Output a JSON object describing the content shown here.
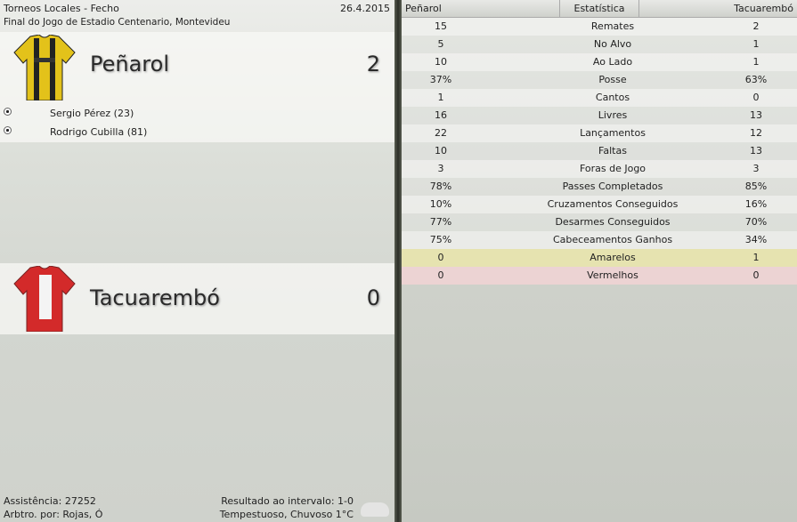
{
  "header": {
    "competition": "Torneos Locales - Fecho",
    "date": "26.4.2015",
    "venue": "Final do Jogo de Estadio Centenario, Montevideu"
  },
  "home": {
    "name": "Peñarol",
    "score": "2",
    "kit_colors": [
      "#e8c400",
      "#1e1e1e"
    ],
    "scorers": [
      "Sergio Pérez (23)",
      "Rodrigo Cubilla (81)"
    ]
  },
  "away": {
    "name": "Tacuarembó",
    "score": "0",
    "kit_colors": [
      "#d32a2a",
      "#ffffff"
    ]
  },
  "footer": {
    "attendance": "Assistência: 27252",
    "referee": "Arbtro. por: Rojas, Ó",
    "halftime": "Resultado ao intervalo: 1-0",
    "weather": "Tempestuoso, Chuvoso 1°C",
    "weather_icon": "rain-cloud-icon"
  },
  "stats": {
    "columns": [
      "Peñarol",
      "Estatística",
      "Tacuarembó"
    ],
    "rows": [
      {
        "home": "15",
        "label": "Remates",
        "away": "2"
      },
      {
        "home": "5",
        "label": "No Alvo",
        "away": "1"
      },
      {
        "home": "10",
        "label": "Ao Lado",
        "away": "1"
      },
      {
        "home": "37%",
        "label": "Posse",
        "away": "63%"
      },
      {
        "home": "1",
        "label": "Cantos",
        "away": "0"
      },
      {
        "home": "16",
        "label": "Livres",
        "away": "13"
      },
      {
        "home": "22",
        "label": "Lançamentos",
        "away": "12"
      },
      {
        "home": "10",
        "label": "Faltas",
        "away": "13"
      },
      {
        "home": "3",
        "label": "Foras de Jogo",
        "away": "3"
      },
      {
        "home": "78%",
        "label": "Passes Completados",
        "away": "85%"
      },
      {
        "home": "10%",
        "label": "Cruzamentos Conseguidos",
        "away": "16%"
      },
      {
        "home": "77%",
        "label": "Desarmes Conseguidos",
        "away": "70%"
      },
      {
        "home": "75%",
        "label": "Cabeceamentos Ganhos",
        "away": "34%"
      },
      {
        "home": "0",
        "label": "Amarelos",
        "away": "1",
        "highlight": "#e6e3b0"
      },
      {
        "home": "0",
        "label": "Vermelhos",
        "away": "0",
        "highlight": "#ecd3d3"
      }
    ]
  }
}
